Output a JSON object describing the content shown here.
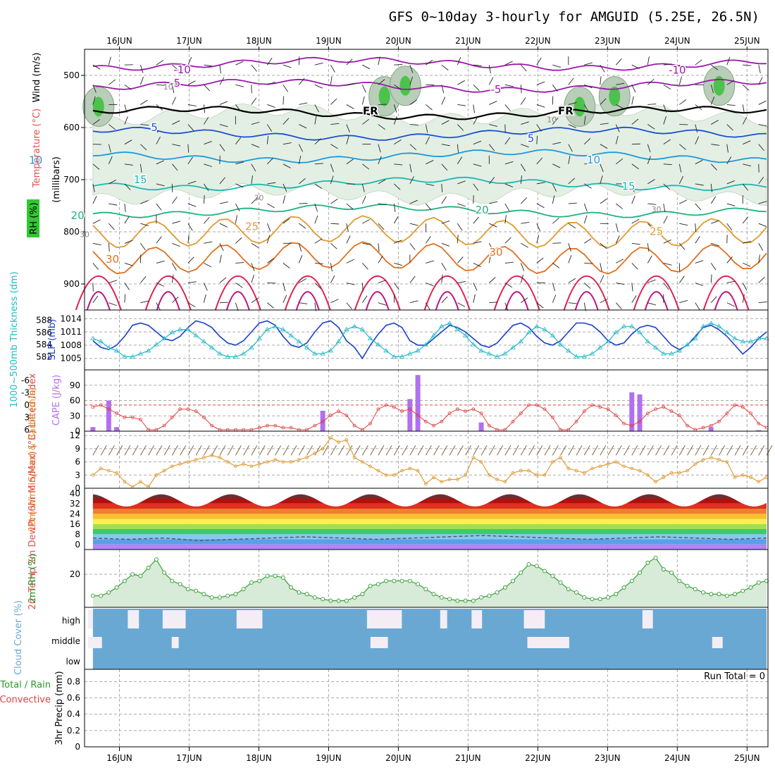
{
  "title": "GFS 0~10day 3-hourly for AMGUID (5.25E, 26.5N)",
  "x_tick_labels": [
    "16JUN",
    "17JUN",
    "18JUN",
    "19JUN",
    "20JUN",
    "21JUN",
    "22JUN",
    "23JUN",
    "24JUN",
    "25JUN"
  ],
  "colors": {
    "axis": "#000000",
    "grid": "#aaaaaa",
    "slp": "#1a3fc8",
    "thickness": "#22b8c8",
    "lifted_index": "#e04040",
    "cape": "#b070f0",
    "wind": "#e0962a",
    "barb": "#7a5a30",
    "rh": "#2a9a2a",
    "rh_fill": "#d8ead8",
    "cloud": "#6aa8d4",
    "cloud_clear": "#f4eef4",
    "temp_label": "#e05050",
    "rh_label": "#32c832"
  },
  "chart_data": [
    {
      "panel": "upper_air",
      "type": "contour",
      "ylabel": "(millibars)",
      "ylim": [
        950,
        450
      ],
      "y_ticks": [
        "500",
        "600",
        "700",
        "800",
        "900"
      ],
      "y_tick_values": [
        500,
        600,
        700,
        800,
        900
      ],
      "side_labels": {
        "wind": "Wind (m/s)",
        "temperature": "Temperature (°C)",
        "rh": "RH (%)"
      },
      "isotherm_labels": [
        {
          "text": "-10",
          "x_day": 16.9,
          "p": 489
        },
        {
          "text": "-10",
          "x_day": 24.0,
          "p": 490
        },
        {
          "text": "-5",
          "x_day": 16.8,
          "p": 515
        },
        {
          "text": "-5",
          "x_day": 21.4,
          "p": 527
        },
        {
          "text": "FR",
          "x_day": 19.6,
          "p": 568
        },
        {
          "text": "FR",
          "x_day": 22.4,
          "p": 568
        },
        {
          "text": "5",
          "x_day": 16.5,
          "p": 600
        },
        {
          "text": "5",
          "x_day": 21.9,
          "p": 621
        },
        {
          "text": "10",
          "x_day": 14.8,
          "p": 663
        },
        {
          "text": "10",
          "x_day": 22.8,
          "p": 662
        },
        {
          "text": "15",
          "x_day": 16.3,
          "p": 700
        },
        {
          "text": "15",
          "x_day": 23.3,
          "p": 713
        },
        {
          "text": "20",
          "x_day": 15.4,
          "p": 769
        },
        {
          "text": "20",
          "x_day": 21.2,
          "p": 758
        },
        {
          "text": "25",
          "x_day": 17.9,
          "p": 790
        },
        {
          "text": "25",
          "x_day": 23.7,
          "p": 799
        },
        {
          "text": "30",
          "x_day": 15.9,
          "p": 853
        },
        {
          "text": "30",
          "x_day": 21.4,
          "p": 839
        }
      ],
      "rh_contour_labels": [
        "10",
        "30",
        "30",
        "10",
        "30"
      ],
      "isotherms": [
        {
          "value": -10,
          "base_p": 478,
          "color": "#9a1aaa"
        },
        {
          "value": -5,
          "base_p": 520,
          "color": "#9a1aaa"
        },
        {
          "value": 0,
          "base_p": 572,
          "color": "#000000"
        },
        {
          "value": 5,
          "base_p": 612,
          "color": "#1a50d0"
        },
        {
          "value": 10,
          "base_p": 655,
          "color": "#1a9ad8"
        },
        {
          "value": 15,
          "base_p": 708,
          "color": "#1ab8b0"
        },
        {
          "value": 20,
          "base_p": 760,
          "color": "#20b080"
        },
        {
          "value": 25,
          "base_p": 800,
          "color": "#e09a30"
        },
        {
          "value": 30,
          "base_p": 850,
          "color": "#e07020"
        }
      ]
    },
    {
      "panel": "slp_thickness",
      "type": "line",
      "ylabel_left": "1000~500mb Thickness (dm)",
      "ylabel_right": "SLP (mb)",
      "y_ticks_thickness": [
        "588",
        "586",
        "584",
        "582"
      ],
      "y_ticks_slp": [
        "1014",
        "1011",
        "1008",
        "1005"
      ],
      "series": [
        {
          "name": "SLP (mb)",
          "marker": "none",
          "values": [
            1009.0,
            1007.5,
            1007.0,
            1008.0,
            1010.0,
            1012.5,
            1013.0,
            1012.5,
            1011.0,
            1009.5,
            1009.0,
            1010.0,
            1012.0,
            1013.5,
            1013.0,
            1012.0,
            1010.0,
            1008.5,
            1008.0,
            1009.0,
            1011.0,
            1013.0,
            1013.5,
            1012.5,
            1010.0,
            1008.0,
            1007.5,
            1008.5,
            1011.0,
            1013.0,
            1013.5,
            1012.0,
            1009.0,
            1007.5,
            1005.0,
            1008.0,
            1010.5,
            1012.5,
            1013.0,
            1012.0,
            1009.0,
            1008.0,
            1008.0,
            1009.5,
            1011.0,
            1012.5,
            1012.0,
            1011.0,
            1009.5,
            1008.0,
            1007.5,
            1008.5,
            1010.5,
            1012.5,
            1013.0,
            1012.0,
            1010.0,
            1008.5,
            1008.0,
            1009.0,
            1011.0,
            1013.0,
            1013.0,
            1012.5,
            1011.0,
            1009.0,
            1008.0,
            1008.5,
            1010.5,
            1012.0,
            1012.5,
            1012.0,
            1010.0,
            1008.0,
            1007.0,
            1008.0,
            1010.0,
            1012.0,
            1012.5,
            1011.5,
            1010.0,
            1008.0,
            1006.0,
            1007.5,
            1009.5,
            1011.0
          ]
        },
        {
          "name": "Thickness (dm)",
          "marker": "triangle",
          "values": [
            585.0,
            584.5,
            583.5,
            583.0,
            582.0,
            582.0,
            582.5,
            583.0,
            584.0,
            585.0,
            586.0,
            586.5,
            586.5,
            585.5,
            584.5,
            583.5,
            582.5,
            582.0,
            582.0,
            582.5,
            583.5,
            585.0,
            586.5,
            587.0,
            586.5,
            585.5,
            584.5,
            583.5,
            582.5,
            582.5,
            583.0,
            584.5,
            586.5,
            587.0,
            586.5,
            585.0,
            584.0,
            583.0,
            582.0,
            582.0,
            582.5,
            583.0,
            584.0,
            585.5,
            587.0,
            587.5,
            586.5,
            585.5,
            584.0,
            583.0,
            582.5,
            582.0,
            582.5,
            583.5,
            584.5,
            586.0,
            587.0,
            586.5,
            585.5,
            584.0,
            583.0,
            582.0,
            582.0,
            582.5,
            583.5,
            584.5,
            586.0,
            587.0,
            587.0,
            586.0,
            584.5,
            583.5,
            582.5,
            582.5,
            583.0,
            584.0,
            585.0,
            587.0,
            587.5,
            587.0,
            586.0,
            585.0,
            584.5,
            584.5,
            585.0,
            585.0
          ]
        }
      ]
    },
    {
      "panel": "lifted_index_cape",
      "type": "bar",
      "ylabel_left": "Lifted Index",
      "ylabel_right": "CAPE (J/kg)",
      "y_ticks_li": [
        "-6",
        "-3",
        "0",
        "3",
        "6"
      ],
      "y_ticks_cape": [
        "90",
        "60",
        "30",
        "0"
      ],
      "series": [
        {
          "name": "Lifted Index",
          "values": [
            0.5,
            0.0,
            1.0,
            2.0,
            3.0,
            3.0,
            3.5,
            6.0,
            6.0,
            5.0,
            3.0,
            1.0,
            1.0,
            1.5,
            3.0,
            5.0,
            6.0,
            6.0,
            6.0,
            6.0,
            6.0,
            5.5,
            5.0,
            5.0,
            5.5,
            5.5,
            6.0,
            6.0,
            5.0,
            4.0,
            2.5,
            1.5,
            2.5,
            5.0,
            6.0,
            4.5,
            1.0,
            0.0,
            0.5,
            1.5,
            1.0,
            2.5,
            4.0,
            5.0,
            4.0,
            2.0,
            1.0,
            1.5,
            1.0,
            2.0,
            5.0,
            6.0,
            6.0,
            4.0,
            2.0,
            0.0,
            0.0,
            1.0,
            3.0,
            6.0,
            6.0,
            4.0,
            1.5,
            0.0,
            0.5,
            1.0,
            2.5,
            4.5,
            5.0,
            4.0,
            2.0,
            1.0,
            0.5,
            1.5,
            2.5,
            5.0,
            6.0,
            5.5,
            5.0,
            4.0,
            2.0,
            0.0,
            0.5,
            2.0,
            4.5,
            5.5
          ]
        },
        {
          "name": "CAPE (J/kg)",
          "values": [
            8,
            0,
            60,
            8,
            0,
            0,
            0,
            0,
            0,
            0,
            0,
            0,
            0,
            0,
            0,
            0,
            0,
            0,
            0,
            0,
            0,
            0,
            0,
            0,
            0,
            0,
            0,
            0,
            0,
            40,
            0,
            0,
            0,
            0,
            0,
            0,
            0,
            0,
            0,
            0,
            63,
            110,
            0,
            0,
            0,
            0,
            0,
            0,
            0,
            17,
            0,
            0,
            0,
            0,
            0,
            0,
            0,
            0,
            0,
            0,
            0,
            0,
            0,
            0,
            0,
            0,
            0,
            0,
            76,
            72,
            0,
            0,
            0,
            0,
            0,
            0,
            0,
            0,
            8,
            0,
            0,
            0,
            0,
            0,
            2,
            0
          ]
        }
      ]
    },
    {
      "panel": "wind10m",
      "type": "line",
      "ylabel": "10m Wind Speed & Barbs (m/s)",
      "y_ticks": [
        "12",
        "9",
        "6",
        "3",
        "0"
      ],
      "ylim": [
        0,
        12
      ],
      "values": [
        3.0,
        4.5,
        4.0,
        3.5,
        1.5,
        0.3,
        1.5,
        0.3,
        3.0,
        4.0,
        5.0,
        5.5,
        6.0,
        6.5,
        7.0,
        7.5,
        7.0,
        6.0,
        5.0,
        5.5,
        5.0,
        5.5,
        6.0,
        6.5,
        6.0,
        6.0,
        6.5,
        7.0,
        8.0,
        9.0,
        11.5,
        10.5,
        11.0,
        7.0,
        6.0,
        5.0,
        4.0,
        3.0,
        3.0,
        4.0,
        4.5,
        4.0,
        1.0,
        2.5,
        1.5,
        2.0,
        2.0,
        3.0,
        7.0,
        6.0,
        3.0,
        2.0,
        1.5,
        3.5,
        4.0,
        4.0,
        3.0,
        3.0,
        6.0,
        7.0,
        4.5,
        4.0,
        3.5,
        4.5,
        5.0,
        5.5,
        6.0,
        5.0,
        4.5,
        4.0,
        3.0,
        1.5,
        2.5,
        3.5,
        3.5,
        4.0,
        5.5,
        6.5,
        7.0,
        6.5,
        6.0,
        2.5,
        3.0,
        2.5,
        1.5,
        2.5
      ]
    },
    {
      "panel": "temp2m",
      "type": "area",
      "ylabel": "2m Temp 2m DewPt (6hr Min/Max) (°C)",
      "y_ticks": [
        "40",
        "32",
        "24",
        "16",
        "8",
        "0"
      ],
      "ylim": [
        -4,
        44
      ],
      "temp_band_colors": [
        "#b483f8",
        "#5aa0e8",
        "#88c8f0",
        "#40c870",
        "#a0e050",
        "#f8f050",
        "#f8c030",
        "#f08030",
        "#e03020",
        "#b01010",
        "#6a3030"
      ],
      "temp_max": [
        39,
        37,
        39,
        36,
        39,
        37,
        39,
        37,
        39
      ],
      "temp_min": [
        30,
        29,
        30,
        29,
        30,
        29,
        30,
        29,
        30
      ],
      "dewpoint": [
        5,
        4,
        5,
        3,
        4,
        5,
        6,
        5,
        4,
        5,
        6,
        7,
        6,
        5,
        4,
        5,
        6,
        5,
        4,
        5
      ]
    },
    {
      "panel": "rh2m",
      "type": "line",
      "ylabel": "2m RH (%)",
      "y_ticks": [
        "20"
      ],
      "ylim": [
        0,
        35
      ],
      "values": [
        7,
        7,
        9,
        12,
        16,
        20,
        19,
        24,
        29,
        21,
        16,
        14,
        11,
        10,
        8,
        6,
        6,
        7,
        8,
        11,
        15,
        16,
        19,
        19,
        18,
        12,
        9,
        8,
        6,
        5,
        4,
        4,
        4,
        6,
        8,
        13,
        14,
        16,
        16,
        16,
        16,
        14,
        11,
        8,
        6,
        5,
        4,
        4,
        4,
        6,
        7,
        9,
        12,
        16,
        21,
        26,
        25,
        22,
        19,
        15,
        11,
        9,
        6,
        5,
        5,
        6,
        8,
        12,
        16,
        21,
        27,
        30,
        23,
        21,
        16,
        13,
        11,
        9,
        8,
        8,
        7,
        8,
        10,
        12,
        15,
        16
      ]
    },
    {
      "panel": "cloud_cover",
      "type": "heatmap",
      "ylabel": "Cloud Cover (%)",
      "levels": [
        "high",
        "middle",
        "low"
      ],
      "clear_blocks": [
        {
          "level": "high",
          "from_day": 15.55,
          "to_day": 15.62
        },
        {
          "level": "high",
          "from_day": 16.12,
          "to_day": 16.28
        },
        {
          "level": "high",
          "from_day": 16.62,
          "to_day": 16.95
        },
        {
          "level": "high",
          "from_day": 17.68,
          "to_day": 18.05
        },
        {
          "level": "high",
          "from_day": 19.55,
          "to_day": 20.05
        },
        {
          "level": "high",
          "from_day": 20.6,
          "to_day": 20.7
        },
        {
          "level": "high",
          "from_day": 21.05,
          "to_day": 21.2
        },
        {
          "level": "high",
          "from_day": 21.8,
          "to_day": 22.1
        },
        {
          "level": "high",
          "from_day": 23.5,
          "to_day": 23.65
        },
        {
          "level": "middle",
          "from_day": 15.55,
          "to_day": 15.75
        },
        {
          "level": "middle",
          "from_day": 16.75,
          "to_day": 16.85
        },
        {
          "level": "middle",
          "from_day": 19.6,
          "to_day": 19.85
        },
        {
          "level": "middle",
          "from_day": 21.85,
          "to_day": 22.45
        },
        {
          "level": "middle",
          "from_day": 24.5,
          "to_day": 24.65
        }
      ]
    },
    {
      "panel": "precip3hr",
      "type": "bar",
      "ylabel": "3hr Precip (mm)",
      "legend_left": "Total / Rain",
      "legend_left2": "Convective",
      "run_total": "Run Total = 0",
      "y_ticks": [
        "0.8",
        "0.6",
        "0.4",
        "0.2",
        "0"
      ],
      "ylim": [
        0,
        1
      ],
      "values": []
    }
  ]
}
